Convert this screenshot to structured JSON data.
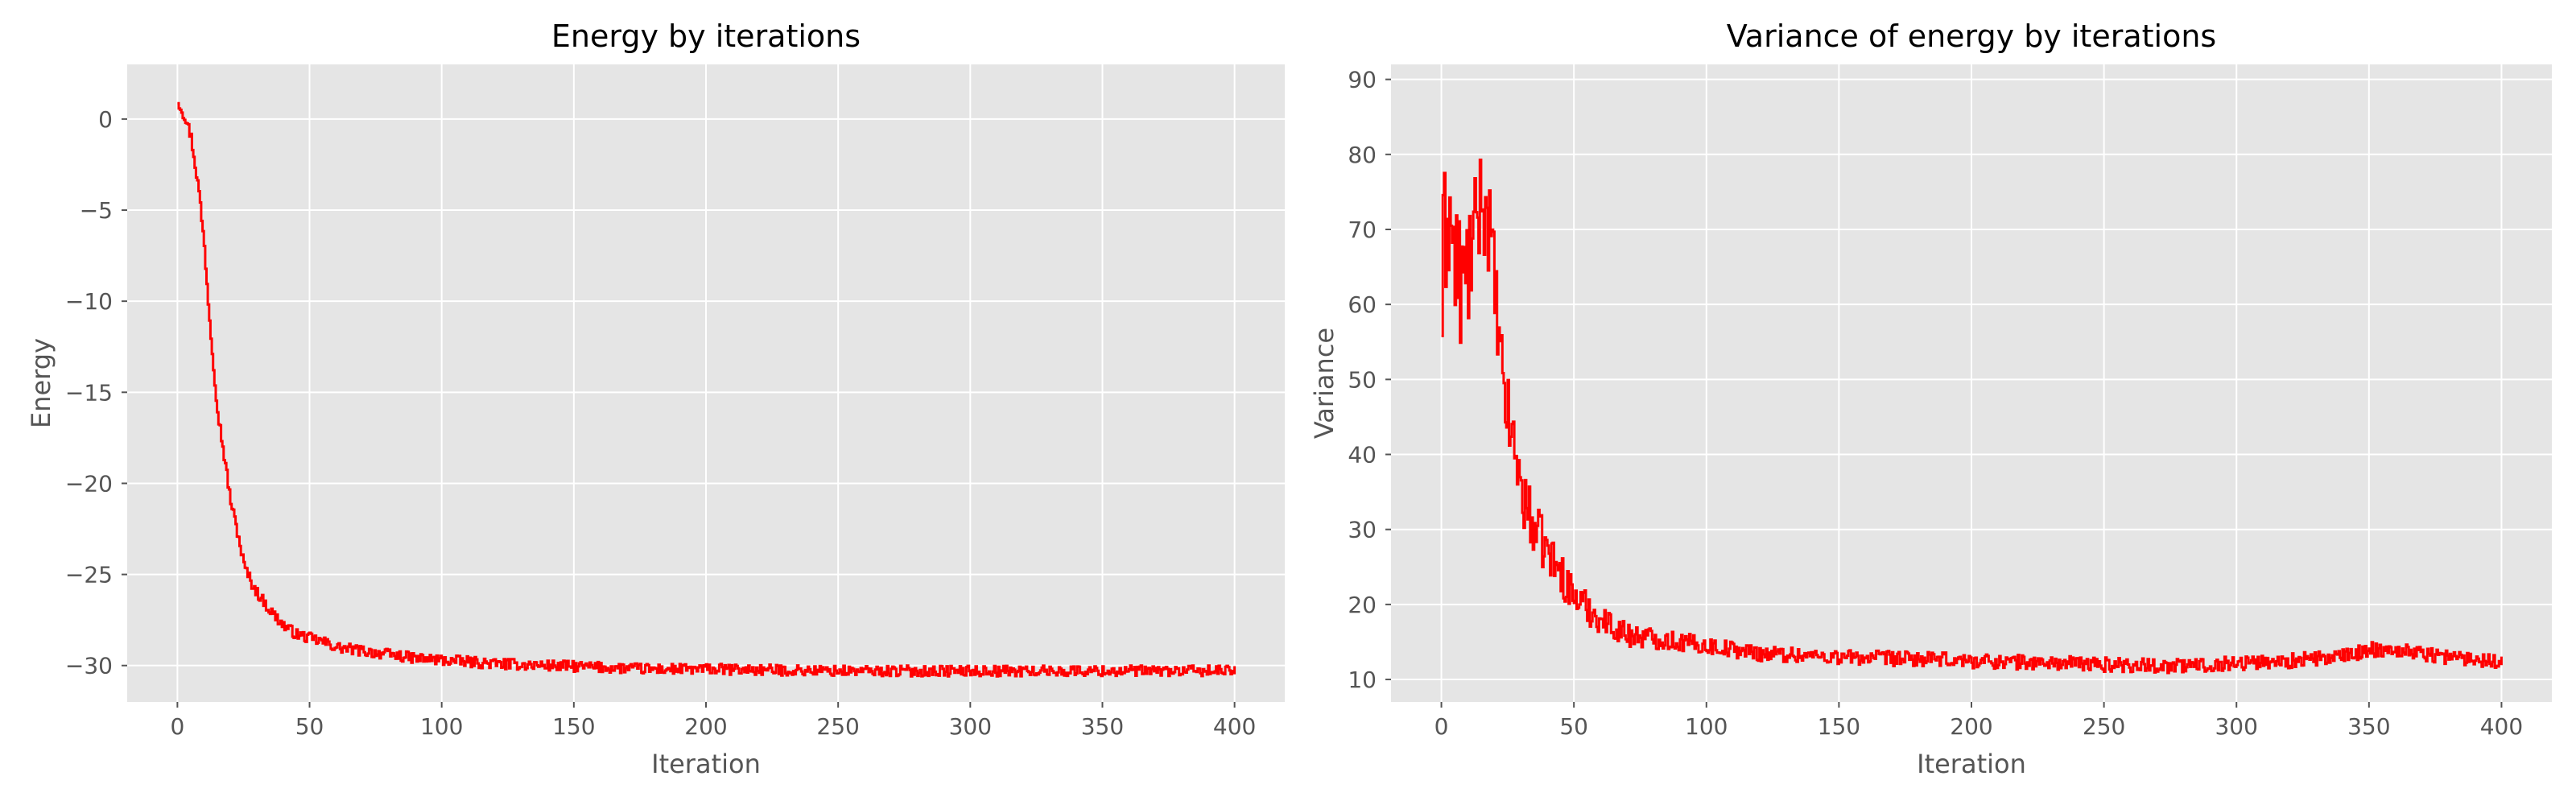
{
  "figure": {
    "background": "#ffffff",
    "axes_background": "#e5e5e5",
    "grid_color": "#ffffff",
    "tick_color": "#555555",
    "style": "ggplot"
  },
  "chart_data": [
    {
      "type": "line",
      "title": "Energy by iterations",
      "xlabel": "Iteration",
      "ylabel": "Energy",
      "xlim": [
        -19,
        419
      ],
      "ylim": [
        -32,
        3
      ],
      "xticks": [
        0,
        50,
        100,
        150,
        200,
        250,
        300,
        350,
        400
      ],
      "xtick_labels": [
        "0",
        "50",
        "100",
        "150",
        "200",
        "250",
        "300",
        "350",
        "400"
      ],
      "yticks": [
        0,
        -5,
        -10,
        -15,
        -20,
        -25,
        -30
      ],
      "ytick_labels": [
        "0",
        "−5",
        "−10",
        "−15",
        "−20",
        "−25",
        "−30"
      ],
      "grid": true,
      "series": [
        {
          "color": "#ff0000",
          "drawstyle": "steps",
          "noise": 0.3,
          "x": [
            0,
            3,
            5,
            8,
            10,
            12,
            15,
            18,
            20,
            23,
            25,
            28,
            30,
            35,
            40,
            45,
            50,
            55,
            60,
            70,
            80,
            90,
            100,
            120,
            140,
            160,
            180,
            200,
            250,
            300,
            350,
            400
          ],
          "y": [
            1.0,
            0.0,
            -1.0,
            -4.0,
            -7.0,
            -11.0,
            -16.0,
            -19.0,
            -21.0,
            -23.0,
            -24.5,
            -25.5,
            -26.0,
            -27.0,
            -27.8,
            -28.3,
            -28.5,
            -28.7,
            -29.0,
            -29.2,
            -29.4,
            -29.6,
            -29.7,
            -29.9,
            -30.0,
            -30.1,
            -30.2,
            -30.2,
            -30.3,
            -30.3,
            -30.3,
            -30.3
          ]
        }
      ]
    },
    {
      "type": "line",
      "title": "Variance of energy by iterations",
      "xlabel": "Iteration",
      "ylabel": "Variance",
      "xlim": [
        -19,
        419
      ],
      "ylim": [
        7,
        92
      ],
      "xticks": [
        0,
        50,
        100,
        150,
        200,
        250,
        300,
        350,
        400
      ],
      "xtick_labels": [
        "0",
        "50",
        "100",
        "150",
        "200",
        "250",
        "300",
        "350",
        "400"
      ],
      "yticks": [
        10,
        20,
        30,
        40,
        50,
        60,
        70,
        80,
        90
      ],
      "ytick_labels": [
        "10",
        "20",
        "30",
        "40",
        "50",
        "60",
        "70",
        "80",
        "90"
      ],
      "grid": true,
      "series": [
        {
          "color": "#ff0000",
          "drawstyle": "steps",
          "noise_decay": {
            "initial": 12.0,
            "final": 1.0,
            "scale": 25
          },
          "x": [
            0,
            2,
            5,
            8,
            12,
            15,
            18,
            20,
            22,
            25,
            28,
            30,
            35,
            40,
            45,
            50,
            60,
            70,
            80,
            100,
            120,
            150,
            200,
            250,
            280,
            300,
            320,
            340,
            350,
            360,
            380,
            400
          ],
          "y": [
            60,
            75,
            65,
            62,
            68,
            75,
            70,
            62,
            52,
            45,
            40,
            35,
            30,
            27,
            24,
            21,
            18,
            16,
            15.5,
            14.5,
            13.5,
            13.0,
            12.5,
            12.0,
            11.8,
            12.2,
            12.5,
            13.0,
            14.0,
            14.0,
            13.0,
            12.5
          ]
        }
      ]
    }
  ]
}
